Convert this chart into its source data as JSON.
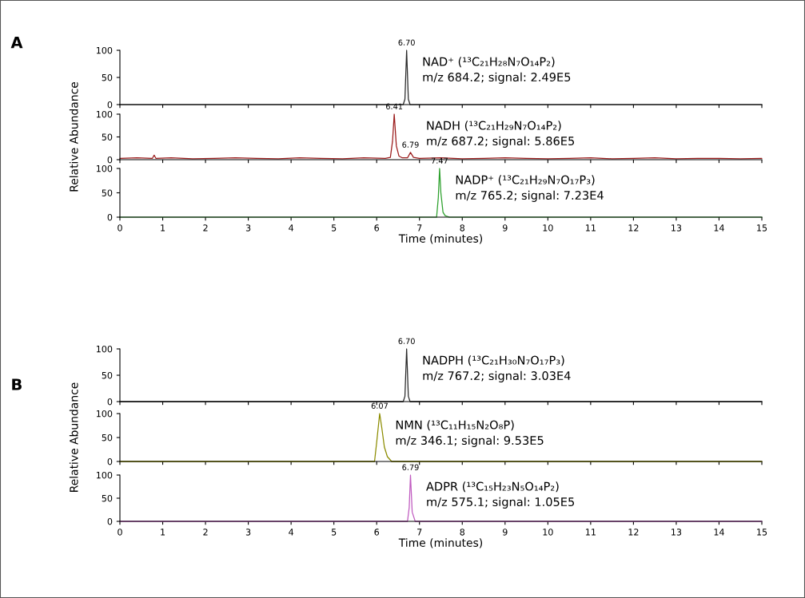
{
  "chart_data": [
    {
      "type": "line",
      "title": "A",
      "xlim": [
        0,
        15
      ],
      "ylim": [
        0,
        100
      ],
      "yticks": [
        0,
        50,
        100
      ],
      "xticks": [
        0,
        1,
        2,
        3,
        4,
        5,
        6,
        7,
        8,
        9,
        10,
        11,
        12,
        13,
        14,
        15
      ],
      "tick_labels": "y",
      "grid": false,
      "legend": false,
      "series": [
        {
          "color": "#2b2b2b",
          "x": [
            0,
            6.62,
            6.66,
            6.7,
            6.74,
            6.78,
            15
          ],
          "values": [
            0,
            0,
            10,
            100,
            10,
            0,
            0
          ]
        }
      ],
      "annotations": [
        "NAD⁺ (¹³C₂₁H₂₈N₇O₁₄P₂)",
        "m/z 684.2; signal: 2.49E5",
        {
          "text": "6.70",
          "x": 6.7,
          "y": 100
        }
      ]
    },
    {
      "type": "line",
      "ylabel": "Relative Abundance",
      "xlim": [
        0,
        15
      ],
      "ylim": [
        0,
        100
      ],
      "yticks": [
        0,
        50,
        100
      ],
      "xticks": [
        0,
        1,
        2,
        3,
        4,
        5,
        6,
        7,
        8,
        9,
        10,
        11,
        12,
        13,
        14,
        15
      ],
      "tick_labels": "y",
      "grid": false,
      "legend": false,
      "series": [
        {
          "color": "#9b1c1c",
          "x": [
            0,
            0.4,
            0.76,
            0.8,
            0.84,
            1.2,
            1.7,
            2.2,
            2.7,
            3.2,
            3.7,
            4.2,
            4.7,
            5.2,
            5.7,
            6.2,
            6.32,
            6.37,
            6.41,
            6.46,
            6.52,
            6.6,
            6.72,
            6.79,
            6.86,
            7.0,
            7.5,
            8.0,
            8.5,
            9.0,
            9.5,
            10.0,
            10.5,
            11.0,
            11.5,
            12.0,
            12.5,
            13.0,
            13.5,
            14.0,
            14.5,
            15
          ],
          "values": [
            3,
            4,
            3,
            10,
            3,
            4,
            2,
            3,
            4,
            3,
            2,
            4,
            3,
            2,
            4,
            3,
            5,
            40,
            100,
            30,
            8,
            4,
            4,
            16,
            5,
            3,
            4,
            2,
            3,
            4,
            3,
            2,
            3,
            4,
            2,
            3,
            4,
            2,
            3,
            3,
            2,
            3
          ]
        }
      ],
      "annotations": [
        "NADH (¹³C₂₁H₂₉N₇O₁₄P₂)",
        "m/z 687.2; signal: 5.86E5",
        {
          "text": "6.41",
          "x": 6.41,
          "y": 100
        },
        {
          "text": "6.79",
          "x": 6.79,
          "y": 16
        }
      ]
    },
    {
      "type": "line",
      "xlabel": "Time (minutes)",
      "xlim": [
        0,
        15
      ],
      "ylim": [
        0,
        100
      ],
      "yticks": [
        0,
        50,
        100
      ],
      "xticks": [
        0,
        1,
        2,
        3,
        4,
        5,
        6,
        7,
        8,
        9,
        10,
        11,
        12,
        13,
        14,
        15
      ],
      "grid": false,
      "legend": false,
      "series": [
        {
          "color": "#2ca02c",
          "x": [
            0,
            7.4,
            7.44,
            7.47,
            7.5,
            7.55,
            7.6,
            7.7,
            15
          ],
          "values": [
            0,
            0,
            40,
            100,
            50,
            10,
            3,
            0,
            0
          ]
        }
      ],
      "annotations": [
        "NADP⁺ (¹³C₂₁H₂₉N₇O₁₇P₃)",
        "m/z 765.2; signal: 7.23E4",
        {
          "text": "7.47",
          "x": 7.47,
          "y": 100
        }
      ]
    },
    {
      "type": "line",
      "title": "B",
      "xlim": [
        0,
        15
      ],
      "ylim": [
        0,
        100
      ],
      "yticks": [
        0,
        50,
        100
      ],
      "xticks": [
        0,
        1,
        2,
        3,
        4,
        5,
        6,
        7,
        8,
        9,
        10,
        11,
        12,
        13,
        14,
        15
      ],
      "tick_labels": "y",
      "grid": false,
      "legend": false,
      "series": [
        {
          "color": "#2b2b2b",
          "x": [
            0,
            6.62,
            6.66,
            6.7,
            6.74,
            6.78,
            15
          ],
          "values": [
            0,
            0,
            10,
            100,
            10,
            0,
            0
          ]
        }
      ],
      "annotations": [
        "NADPH (¹³C₂₁H₃₀N₇O₁₇P₃)",
        "m/z 767.2; signal: 3.03E4",
        {
          "text": "6.70",
          "x": 6.7,
          "y": 100
        }
      ]
    },
    {
      "type": "line",
      "ylabel": "Relative Abundance",
      "xlim": [
        0,
        15
      ],
      "ylim": [
        0,
        100
      ],
      "yticks": [
        0,
        50,
        100
      ],
      "xticks": [
        0,
        1,
        2,
        3,
        4,
        5,
        6,
        7,
        8,
        9,
        10,
        11,
        12,
        13,
        14,
        15
      ],
      "tick_labels": "y",
      "grid": false,
      "legend": false,
      "series": [
        {
          "color": "#8c8c00",
          "x": [
            0,
            5.95,
            6.0,
            6.07,
            6.12,
            6.18,
            6.25,
            6.3,
            6.35,
            15
          ],
          "values": [
            0,
            0,
            40,
            100,
            70,
            30,
            10,
            5,
            0,
            0
          ]
        }
      ],
      "annotations": [
        "NMN (¹³C₁₁H₁₅N₂O₈P)",
        "m/z 346.1; signal: 9.53E5",
        {
          "text": "6.07",
          "x": 6.07,
          "y": 100
        }
      ]
    },
    {
      "type": "line",
      "xlabel": "Time (minutes)",
      "xlim": [
        0,
        15
      ],
      "ylim": [
        0,
        100
      ],
      "yticks": [
        0,
        50,
        100
      ],
      "xticks": [
        0,
        1,
        2,
        3,
        4,
        5,
        6,
        7,
        8,
        9,
        10,
        11,
        12,
        13,
        14,
        15
      ],
      "grid": false,
      "legend": false,
      "series": [
        {
          "color": "#c05cc0",
          "x": [
            0,
            6.72,
            6.76,
            6.79,
            6.83,
            6.9,
            15
          ],
          "values": [
            0,
            0,
            30,
            100,
            20,
            0,
            0
          ]
        }
      ],
      "annotations": [
        "ADPR (¹³C₁₅H₂₃N₅O₁₄P₂)",
        "m/z 575.1; signal: 1.05E5",
        {
          "text": "6.79",
          "x": 6.79,
          "y": 100
        }
      ]
    }
  ]
}
